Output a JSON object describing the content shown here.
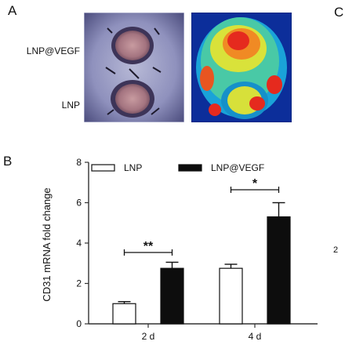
{
  "panels": {
    "a": "A",
    "b": "B",
    "c": "C"
  },
  "image_labels": {
    "top": "LNP@VEGF",
    "bottom": "LNP"
  },
  "side_mark": "2",
  "colors": {
    "lnp_fill": "#ffffff",
    "lnp_vegf_fill": "#0d0d0d",
    "axis": "#333333"
  },
  "chart_data": {
    "type": "bar",
    "categories": [
      "2 d",
      "4 d"
    ],
    "series": [
      {
        "name": "LNP",
        "values": [
          1.0,
          2.75
        ],
        "errors": [
          0.1,
          0.2
        ]
      },
      {
        "name": "LNP@VEGF",
        "values": [
          2.75,
          5.3
        ],
        "errors": [
          0.3,
          0.7
        ]
      }
    ],
    "ylabel": "CD31 mRNA fold change",
    "xlabel": "",
    "ylim": [
      0,
      8
    ],
    "yticks": [
      0,
      2,
      4,
      6,
      8
    ],
    "legend_position": "top",
    "significance": [
      {
        "category": "2 d",
        "label": "**"
      },
      {
        "category": "4 d",
        "label": "*"
      }
    ]
  }
}
